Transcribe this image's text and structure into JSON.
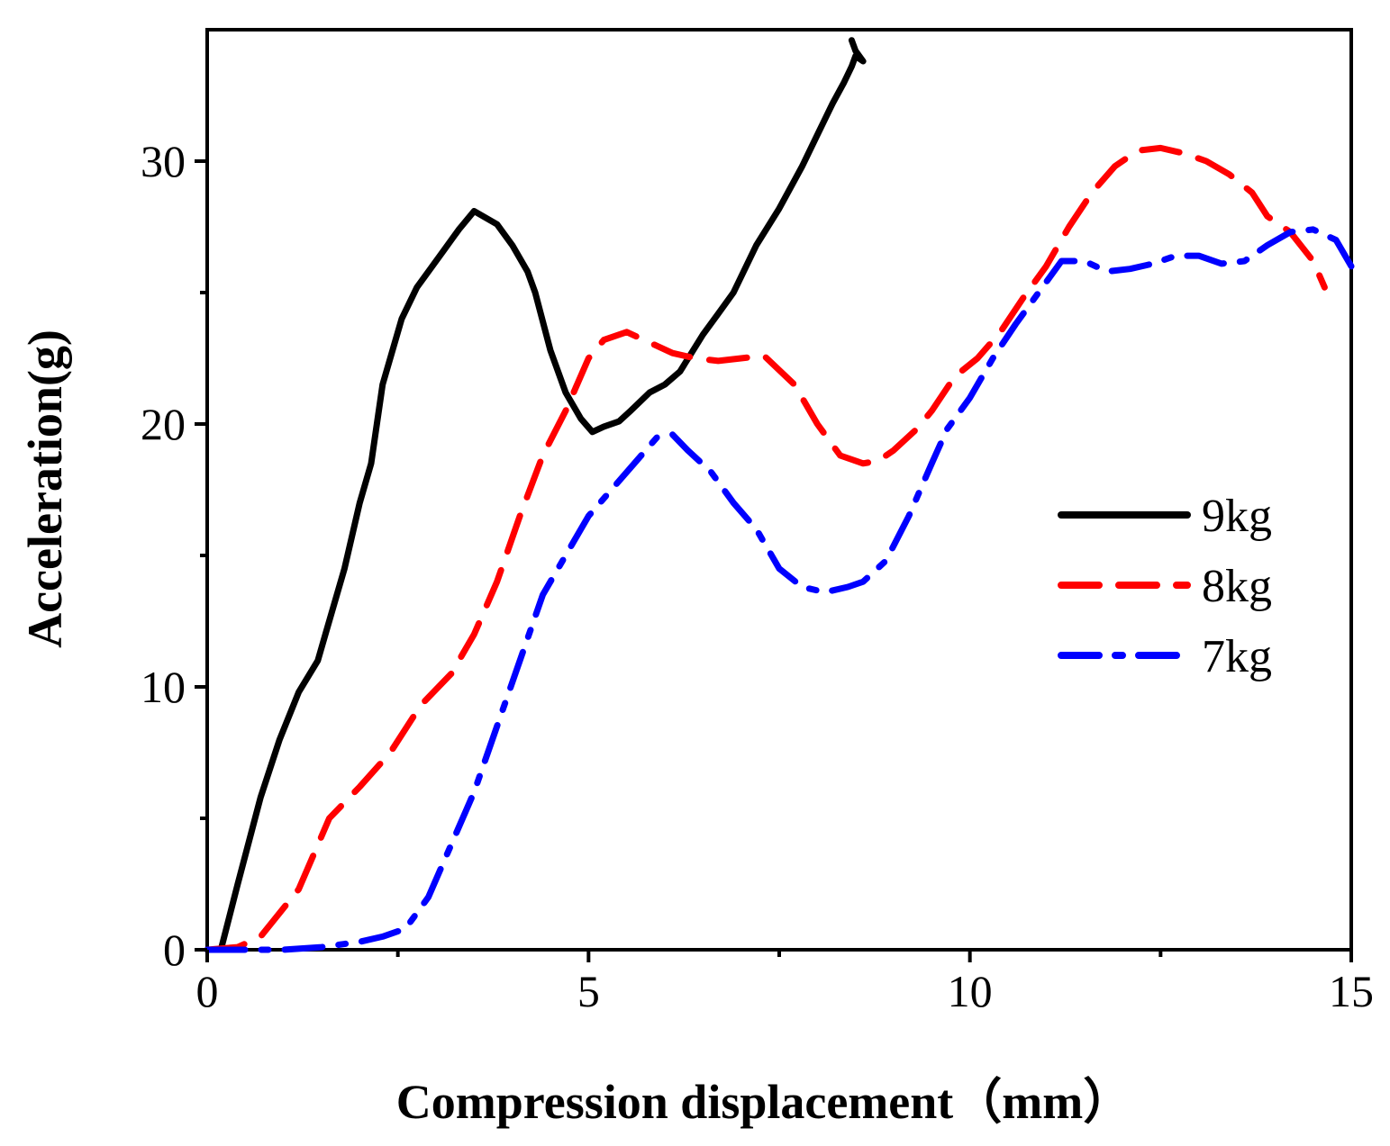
{
  "chart_data": {
    "type": "line",
    "title": "",
    "xlabel": "Compression displacement（mm）",
    "ylabel": "Acceleration(g)",
    "xlim": [
      0,
      15
    ],
    "ylim": [
      0,
      35
    ],
    "xticks": [
      0,
      5,
      10,
      15
    ],
    "yticks": [
      0,
      10,
      20,
      30
    ],
    "xtick_labels": [
      "0",
      "5",
      "10",
      "15"
    ],
    "ytick_labels": [
      "0",
      "10",
      "20",
      "30"
    ],
    "legend_position": "right",
    "series": [
      {
        "name": "9kg",
        "color": "#000000",
        "style": "solid",
        "x": [
          0.18,
          0.4,
          0.7,
          0.95,
          1.2,
          1.45,
          1.55,
          1.8,
          2.0,
          2.15,
          2.3,
          2.55,
          2.75,
          2.95,
          3.1,
          3.3,
          3.5,
          3.8,
          4.0,
          4.2,
          4.3,
          4.5,
          4.7,
          4.9,
          5.05,
          5.2,
          5.4,
          5.55,
          5.8,
          6.0,
          6.2,
          6.5,
          6.7,
          6.9,
          7.2,
          7.5,
          7.8,
          8.0,
          8.2,
          8.35,
          8.45,
          8.5,
          8.6,
          8.5,
          8.45
        ],
        "y": [
          0,
          2.5,
          5.8,
          8.0,
          9.8,
          11.0,
          12.0,
          14.5,
          17.0,
          18.5,
          21.5,
          24.0,
          25.2,
          26.0,
          26.6,
          27.4,
          28.1,
          27.6,
          26.8,
          25.8,
          25.0,
          22.8,
          21.2,
          20.2,
          19.7,
          19.9,
          20.1,
          20.5,
          21.2,
          21.5,
          22.0,
          23.4,
          24.2,
          25.0,
          26.8,
          28.2,
          29.8,
          31.0,
          32.2,
          33.0,
          33.6,
          34.0,
          33.8,
          34.2,
          34.6
        ]
      },
      {
        "name": "8kg",
        "color": "#ff0000",
        "style": "dashed",
        "x": [
          0,
          0.4,
          0.7,
          1.2,
          1.6,
          2.0,
          2.4,
          2.8,
          3.2,
          3.5,
          3.8,
          4.1,
          4.4,
          4.7,
          5.0,
          5.2,
          5.5,
          5.8,
          6.1,
          6.4,
          6.7,
          7.0,
          7.3,
          7.7,
          8.0,
          8.3,
          8.6,
          8.8,
          9.0,
          9.3,
          9.5,
          9.8,
          10.1,
          10.4,
          10.7,
          11.0,
          11.3,
          11.6,
          11.9,
          12.2,
          12.5,
          12.8,
          13.1,
          13.4,
          13.7,
          13.9,
          14.2,
          14.5,
          14.65
        ],
        "y": [
          0,
          0.1,
          0.5,
          2.3,
          5.0,
          6.2,
          7.5,
          9.3,
          10.5,
          12.0,
          14.0,
          16.5,
          18.8,
          20.5,
          22.5,
          23.2,
          23.5,
          23.1,
          22.7,
          22.5,
          22.4,
          22.5,
          22.6,
          21.5,
          20.0,
          18.8,
          18.5,
          18.6,
          19.0,
          19.8,
          20.5,
          21.8,
          22.5,
          23.5,
          24.8,
          26.0,
          27.5,
          28.8,
          29.8,
          30.4,
          30.5,
          30.3,
          30.0,
          29.5,
          28.8,
          27.9,
          27.3,
          26.2,
          25.2
        ]
      },
      {
        "name": "7kg",
        "color": "#0000ff",
        "style": "dashdot",
        "x": [
          0,
          0.5,
          1.0,
          1.5,
          2.0,
          2.3,
          2.6,
          2.9,
          3.2,
          3.5,
          3.8,
          4.1,
          4.4,
          4.7,
          5.0,
          5.3,
          5.6,
          5.9,
          6.1,
          6.3,
          6.6,
          6.9,
          7.2,
          7.5,
          7.8,
          8.1,
          8.4,
          8.6,
          8.9,
          9.2,
          9.5,
          9.7,
          10.0,
          10.3,
          10.6,
          10.9,
          11.2,
          11.5,
          11.8,
          12.1,
          12.4,
          12.7,
          13.0,
          13.3,
          13.6,
          13.9,
          14.2,
          14.5,
          14.8,
          15.0
        ],
        "y": [
          0,
          0,
          0,
          0.1,
          0.3,
          0.5,
          0.8,
          2.0,
          4.0,
          6.0,
          8.5,
          11.0,
          13.5,
          15.0,
          16.5,
          17.5,
          18.5,
          19.5,
          19.6,
          19.0,
          18.2,
          17.0,
          16.0,
          14.5,
          13.8,
          13.6,
          13.8,
          14.0,
          14.8,
          16.5,
          18.5,
          19.8,
          21.0,
          22.5,
          23.8,
          25.0,
          26.2,
          26.2,
          25.8,
          25.9,
          26.1,
          26.4,
          26.4,
          26.1,
          26.2,
          26.8,
          27.3,
          27.4,
          27.0,
          26.0
        ]
      }
    ]
  }
}
